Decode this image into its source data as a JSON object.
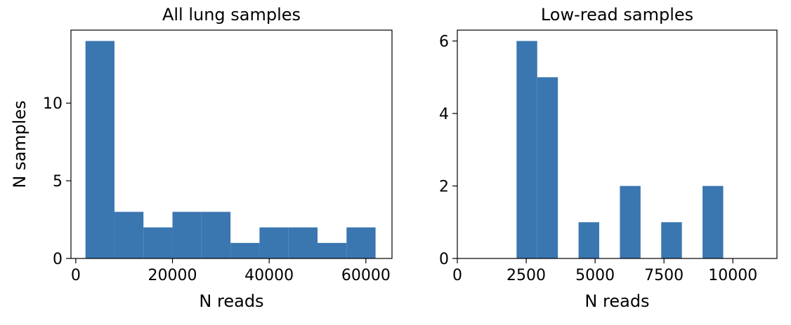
{
  "chart_data": [
    {
      "type": "bar",
      "title": "All lung samples",
      "xlabel": "N reads",
      "ylabel": "N samples",
      "xlim": [
        -1000,
        65400
      ],
      "ylim": [
        0,
        14.7
      ],
      "xticks": [
        0,
        20000,
        40000,
        60000
      ],
      "xtick_labels": [
        "0",
        "20000",
        "40000",
        "60000"
      ],
      "yticks": [
        0,
        5,
        10
      ],
      "ytick_labels": [
        "0",
        "5",
        "10"
      ],
      "color": "#3a76b0",
      "grid": false,
      "bins": [
        {
          "x0": 2000,
          "x1": 8000,
          "count": 14
        },
        {
          "x0": 8000,
          "x1": 14000,
          "count": 3
        },
        {
          "x0": 14000,
          "x1": 20000,
          "count": 2
        },
        {
          "x0": 20000,
          "x1": 26000,
          "count": 3
        },
        {
          "x0": 26000,
          "x1": 32000,
          "count": 3
        },
        {
          "x0": 32000,
          "x1": 38000,
          "count": 1
        },
        {
          "x0": 38000,
          "x1": 44000,
          "count": 2
        },
        {
          "x0": 44000,
          "x1": 50000,
          "count": 2
        },
        {
          "x0": 50000,
          "x1": 56000,
          "count": 1
        },
        {
          "x0": 56000,
          "x1": 62000,
          "count": 2
        }
      ]
    },
    {
      "type": "bar",
      "title": "Low-read samples",
      "xlabel": "N reads",
      "ylabel": "",
      "xlim": [
        0,
        11600
      ],
      "ylim": [
        0,
        6.3
      ],
      "xticks": [
        0,
        2500,
        5000,
        7500,
        10000
      ],
      "xtick_labels": [
        "0",
        "2500",
        "5000",
        "7500",
        "10000"
      ],
      "yticks": [
        0,
        2,
        4,
        6
      ],
      "ytick_labels": [
        "0",
        "2",
        "4",
        "6"
      ],
      "color": "#3a76b0",
      "grid": false,
      "bins": [
        {
          "x0": 2150,
          "x1": 2900,
          "count": 6
        },
        {
          "x0": 2900,
          "x1": 3650,
          "count": 5
        },
        {
          "x0": 3650,
          "x1": 4400,
          "count": 0
        },
        {
          "x0": 4400,
          "x1": 5150,
          "count": 1
        },
        {
          "x0": 5150,
          "x1": 5900,
          "count": 0
        },
        {
          "x0": 5900,
          "x1": 6650,
          "count": 2
        },
        {
          "x0": 6650,
          "x1": 7400,
          "count": 0
        },
        {
          "x0": 7400,
          "x1": 8150,
          "count": 1
        },
        {
          "x0": 8150,
          "x1": 8900,
          "count": 0
        },
        {
          "x0": 8900,
          "x1": 9650,
          "count": 2
        }
      ]
    }
  ]
}
